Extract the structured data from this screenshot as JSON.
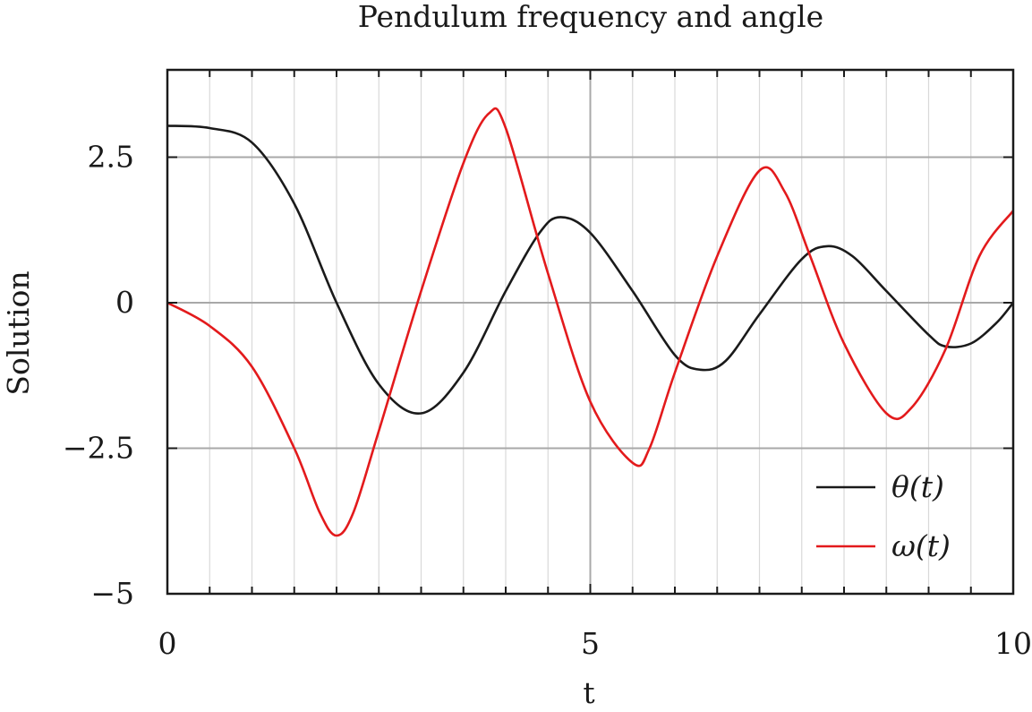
{
  "chart_data": {
    "type": "line",
    "title": "Pendulum frequency and angle",
    "xlabel": "t",
    "ylabel": "Solution",
    "xlim": [
      0,
      10
    ],
    "ylim": [
      -5,
      4
    ],
    "x_ticks": [
      0,
      5,
      10
    ],
    "x_tick_labels": [
      "0",
      "5",
      "10"
    ],
    "y_ticks": [
      -5,
      -2.5,
      0,
      2.5
    ],
    "y_tick_labels": [
      "−5",
      "−2.5",
      "0",
      "2.5"
    ],
    "x_minor_step": 0.5,
    "grid": true,
    "legend_position": "bottom-right",
    "series": [
      {
        "name": "θ(t)",
        "color": "#1a1a1a",
        "points": [
          [
            0,
            3.04
          ],
          [
            0.5,
            3.0
          ],
          [
            1.0,
            2.75
          ],
          [
            1.5,
            1.7
          ],
          [
            2.0,
            0.0
          ],
          [
            2.5,
            -1.4
          ],
          [
            3.0,
            -1.9
          ],
          [
            3.5,
            -1.2
          ],
          [
            4.0,
            0.2
          ],
          [
            4.4,
            1.2
          ],
          [
            4.65,
            1.47
          ],
          [
            5.0,
            1.2
          ],
          [
            5.5,
            0.2
          ],
          [
            6.0,
            -0.9
          ],
          [
            6.3,
            -1.15
          ],
          [
            6.6,
            -1.0
          ],
          [
            7.0,
            -0.2
          ],
          [
            7.5,
            0.75
          ],
          [
            7.8,
            0.97
          ],
          [
            8.1,
            0.8
          ],
          [
            8.5,
            0.2
          ],
          [
            9.0,
            -0.55
          ],
          [
            9.2,
            -0.75
          ],
          [
            9.5,
            -0.7
          ],
          [
            9.8,
            -0.35
          ],
          [
            10.0,
            0.0
          ]
        ]
      },
      {
        "name": "ω(t)",
        "color": "#e31a1c",
        "points": [
          [
            0,
            0.0
          ],
          [
            0.5,
            -0.4
          ],
          [
            1.0,
            -1.1
          ],
          [
            1.5,
            -2.5
          ],
          [
            1.8,
            -3.6
          ],
          [
            2.0,
            -4.0
          ],
          [
            2.2,
            -3.6
          ],
          [
            2.5,
            -2.2
          ],
          [
            3.0,
            0.2
          ],
          [
            3.5,
            2.4
          ],
          [
            3.8,
            3.25
          ],
          [
            4.0,
            3.0
          ],
          [
            4.5,
            0.5
          ],
          [
            5.0,
            -1.7
          ],
          [
            5.5,
            -2.75
          ],
          [
            5.7,
            -2.5
          ],
          [
            6.0,
            -1.2
          ],
          [
            6.5,
            0.8
          ],
          [
            7.0,
            2.27
          ],
          [
            7.3,
            1.9
          ],
          [
            7.6,
            0.8
          ],
          [
            8.0,
            -0.7
          ],
          [
            8.5,
            -1.9
          ],
          [
            8.8,
            -1.8
          ],
          [
            9.2,
            -0.8
          ],
          [
            9.6,
            0.8
          ],
          [
            10.0,
            1.58
          ]
        ]
      }
    ]
  }
}
